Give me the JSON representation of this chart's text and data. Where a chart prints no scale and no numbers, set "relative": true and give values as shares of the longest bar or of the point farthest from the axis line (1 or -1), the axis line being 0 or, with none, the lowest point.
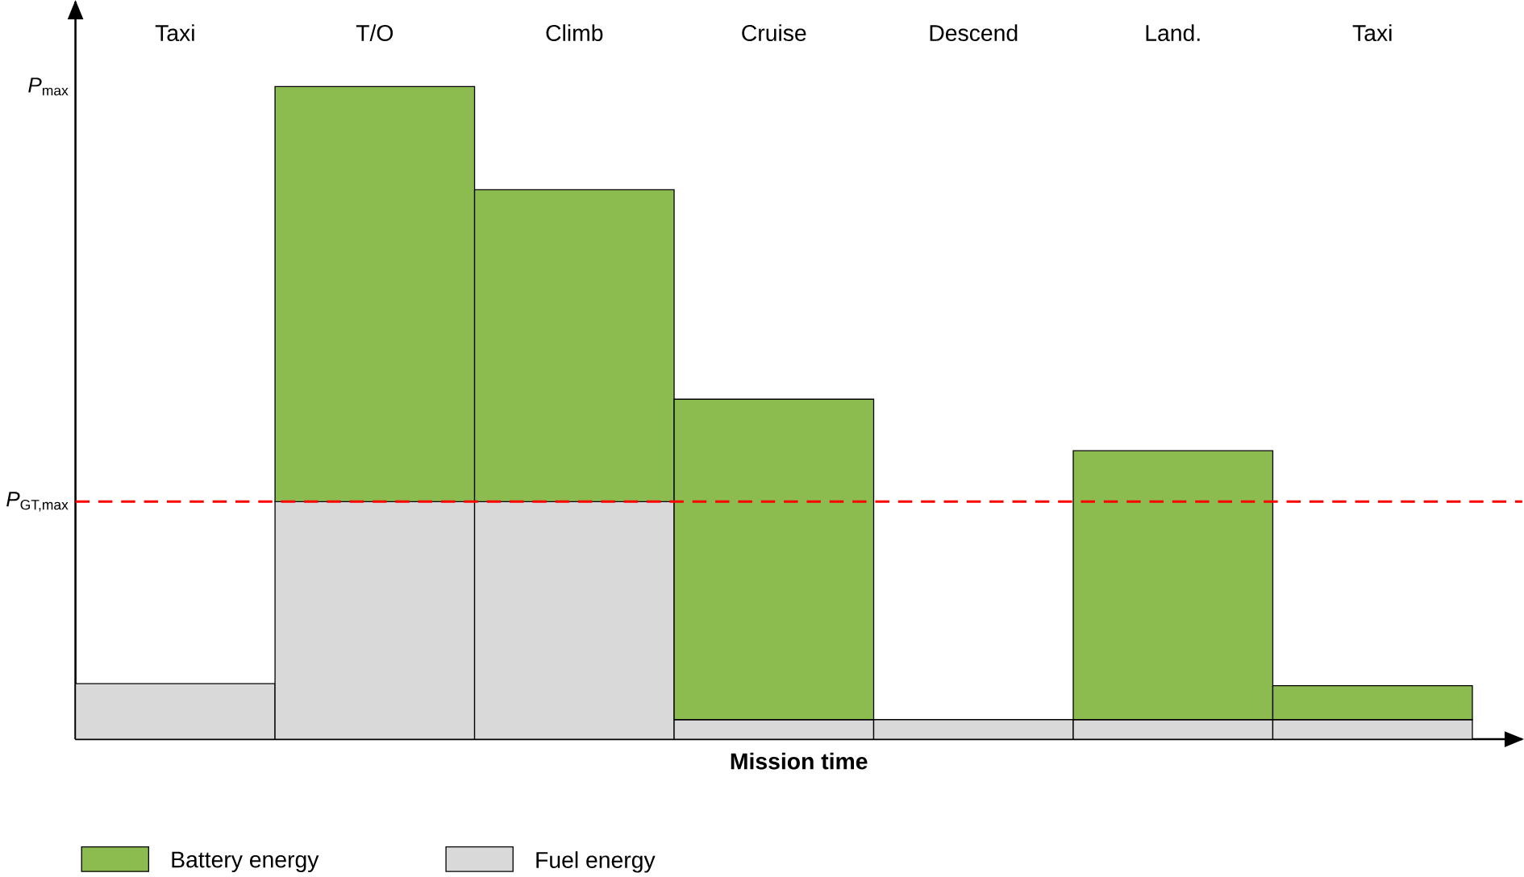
{
  "chart_data": {
    "type": "bar",
    "stacked": true,
    "relative": true,
    "xlabel": "Mission time",
    "categories": [
      "Taxi",
      "T/O",
      "Climb",
      "Cruise",
      "Descend",
      "Land.",
      "Taxi"
    ],
    "series": [
      {
        "name": "Fuel energy",
        "color": "#d9d9d9",
        "values": [
          0.085,
          0.364,
          0.364,
          0.03,
          0.03,
          0.03,
          0.03
        ]
      },
      {
        "name": "Battery energy",
        "color": "#8cbb50",
        "values": [
          0,
          0.636,
          0.478,
          0.491,
          0,
          0.412,
          0.052
        ]
      }
    ],
    "ref_lines": [
      {
        "axis": "y",
        "value": 0.364,
        "label": "*P*$_{GT,max}$",
        "color": "#ff0000",
        "line_style": "dashed"
      }
    ],
    "annotations": [
      "*P*$_{max}$"
    ],
    "legend": "bottom"
  }
}
